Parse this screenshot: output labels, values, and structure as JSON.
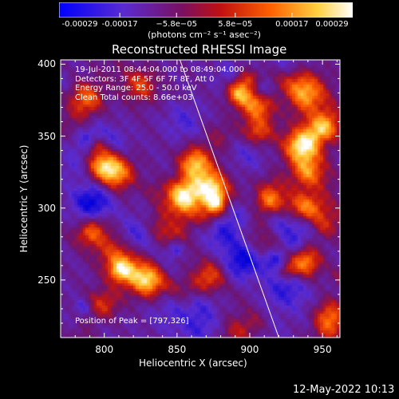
{
  "chart_data": {
    "type": "heatmap",
    "title": "Reconstructed RHESSI Image",
    "xlabel": "Heliocentric X (arcsec)",
    "ylabel": "Heliocentric Y (arcsec)",
    "xlim": [
      770,
      962
    ],
    "ylim": [
      210,
      403
    ],
    "xticks": [
      800,
      850,
      900,
      950
    ],
    "yticks": [
      250,
      300,
      350,
      400
    ],
    "xtick_labels": [
      "800",
      "850",
      "900",
      "950"
    ],
    "ytick_labels": [
      "250",
      "300",
      "350",
      "400"
    ],
    "colorbar": {
      "range": [
        -0.00029,
        0.00029
      ],
      "ticks": [
        -0.00029,
        -0.00017,
        -5.8e-05,
        5.8e-05,
        0.00017,
        0.00029
      ],
      "tick_labels": [
        "-0.00029",
        "-0.00017",
        "−5.8e−05",
        "5.8e−05",
        "0.00017",
        "0.00029"
      ],
      "units_label": "(photons cm⁻² s⁻¹ asec⁻²)",
      "colormap": [
        "#0000ff",
        "#5a2bd0",
        "#7a1060",
        "#c01010",
        "#ff6000",
        "#ffd040",
        "#ffffff"
      ]
    },
    "info": {
      "line1": "19-Jul-2011 08:44:04.000 to 08:49:04.000",
      "line2": "Detectors: 3F 4F 5F 6F 7F 8F, Att 0",
      "line3": "Energy Range: 25.0 - 50.0 keV",
      "line4": "Clean     Total counts: 8.66e+03"
    },
    "peak_label": "Position of Peak = [797,326]",
    "peak_position": [
      797,
      326
    ],
    "limb_line": [
      [
        852,
        403
      ],
      [
        920,
        210
      ]
    ],
    "hotspots": [
      [
        862,
        330,
        1.0
      ],
      [
        873,
        315,
        0.85
      ],
      [
        855,
        310,
        0.7
      ],
      [
        935,
        343,
        0.95
      ],
      [
        940,
        325,
        0.7
      ],
      [
        950,
        355,
        0.75
      ],
      [
        800,
        330,
        0.85
      ],
      [
        810,
        323,
        0.6
      ],
      [
        830,
        250,
        0.95
      ],
      [
        815,
        257,
        0.6
      ],
      [
        790,
        285,
        0.65
      ],
      [
        895,
        385,
        0.7
      ],
      [
        905,
        372,
        0.55
      ],
      [
        788,
        376,
        0.6
      ],
      [
        935,
        300,
        0.55
      ],
      [
        938,
        262,
        0.55
      ],
      [
        872,
        252,
        0.55
      ],
      [
        955,
        225,
        0.55
      ],
      [
        800,
        232,
        0.5
      ],
      [
        845,
        286,
        0.5
      ],
      [
        825,
        385,
        0.5
      ],
      [
        915,
        305,
        0.45
      ]
    ],
    "coldspots": [
      [
        895,
        263,
        0.9
      ],
      [
        850,
        265,
        0.6
      ],
      [
        880,
        285,
        0.55
      ],
      [
        820,
        280,
        0.6
      ],
      [
        790,
        348,
        0.6
      ],
      [
        930,
        290,
        0.5
      ],
      [
        900,
        340,
        0.45
      ],
      [
        925,
        245,
        0.55
      ],
      [
        855,
        360,
        0.4
      ],
      [
        790,
        300,
        0.45
      ]
    ]
  },
  "timestamp": "12-May-2022 10:13"
}
